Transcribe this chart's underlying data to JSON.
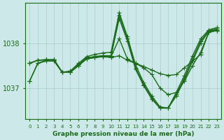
{
  "xlabel": "Graphe pression niveau de la mer (hPa)",
  "ylabel": "",
  "hours": [
    0,
    1,
    2,
    3,
    4,
    5,
    6,
    7,
    8,
    9,
    10,
    11,
    12,
    13,
    14,
    15,
    16,
    17,
    18,
    19,
    20,
    21,
    22,
    23
  ],
  "series": [
    [
      1037.15,
      1037.55,
      1037.6,
      1037.6,
      1037.35,
      1037.35,
      1037.5,
      1037.65,
      1037.68,
      1037.7,
      1037.68,
      1037.72,
      1037.62,
      1037.55,
      1037.48,
      1037.4,
      1037.32,
      1037.28,
      1037.3,
      1037.45,
      1037.6,
      1037.75,
      1038.25,
      1038.28
    ],
    [
      1037.55,
      1037.62,
      1037.63,
      1037.63,
      1037.35,
      1037.35,
      1037.5,
      1037.65,
      1037.68,
      1037.7,
      1037.7,
      1038.1,
      1037.65,
      1037.55,
      1037.45,
      1037.3,
      1037.0,
      1036.85,
      1036.9,
      1037.15,
      1037.5,
      1037.8,
      1038.25,
      1038.28
    ],
    [
      1037.55,
      1037.62,
      1037.63,
      1037.63,
      1037.35,
      1037.35,
      1037.52,
      1037.67,
      1037.7,
      1037.72,
      1037.72,
      1038.55,
      1038.05,
      1037.42,
      1037.05,
      1036.75,
      1036.55,
      1036.55,
      1036.82,
      1037.18,
      1037.6,
      1038.0,
      1038.27,
      1038.3
    ],
    [
      1037.55,
      1037.62,
      1037.63,
      1037.63,
      1037.35,
      1037.35,
      1037.52,
      1037.67,
      1037.7,
      1037.72,
      1037.72,
      1038.62,
      1038.1,
      1037.45,
      1037.08,
      1036.78,
      1036.55,
      1036.55,
      1036.85,
      1037.22,
      1037.65,
      1038.05,
      1038.28,
      1038.32
    ],
    [
      1037.15,
      1037.55,
      1037.62,
      1037.62,
      1037.35,
      1037.38,
      1037.55,
      1037.7,
      1037.75,
      1037.78,
      1037.8,
      1038.68,
      1038.15,
      1037.52,
      1037.12,
      1036.82,
      1036.58,
      1036.55,
      1036.9,
      1037.28,
      1037.72,
      1038.1,
      1038.3,
      1038.35
    ]
  ],
  "line_color": "#1a6b1a",
  "bg_color": "#cce8e8",
  "grid_color": "#aacccc",
  "tick_label_color": "#1a6b1a",
  "xlabel_color": "#1a6b1a",
  "yticks": [
    1037,
    1038
  ],
  "ylim": [
    1036.3,
    1038.9
  ],
  "marker": "+",
  "markersize": 4,
  "linewidth": 1.0
}
